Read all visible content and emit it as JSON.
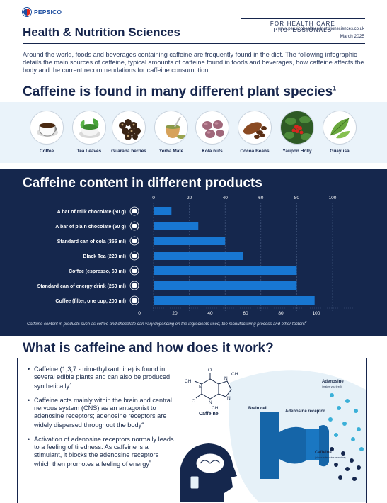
{
  "header": {
    "brand": "PEPSICO",
    "title": "Health & Nutrition Sciences",
    "audience": "FOR HEALTH CARE PROFESSIONALS",
    "website": "www.pepsicohealthandnutritionsciences.co.uk",
    "date": "March 2025"
  },
  "intro": "Around the world, foods and beverages containing caffeine are frequently found in the diet. The following infographic details the main sources of caffeine, typical amounts of caffeine found in foods and beverages, how caffeine affects the body and the current recommendations for caffeine consumption.",
  "section1": {
    "title": "Caffeine is found in many different plant species",
    "ref": "1"
  },
  "plants": [
    {
      "label": "Coffee",
      "icon": "coffee-cup-icon"
    },
    {
      "label": "Tea Leaves",
      "icon": "tea-leaves-icon"
    },
    {
      "label": "Guarana berries",
      "icon": "guarana-berries-icon"
    },
    {
      "label": "Yerba Mate",
      "icon": "yerba-mate-icon"
    },
    {
      "label": "Kola nuts",
      "icon": "kola-nuts-icon"
    },
    {
      "label": "Cocoa Beans",
      "icon": "cocoa-beans-icon"
    },
    {
      "label": "Yaupon Holly",
      "icon": "yaupon-holly-icon"
    },
    {
      "label": "Guayusa",
      "icon": "guayusa-icon"
    }
  ],
  "section2": {
    "title": "Caffeine content in different products"
  },
  "chart_data": {
    "type": "bar",
    "orientation": "horizontal",
    "title": "Caffeine content in different products",
    "categories": [
      "A bar of milk chocolate (50 g)",
      "A bar of plain chocolate (50 g)",
      "Standard can of cola (355 ml)",
      "Black Tea (220 ml)",
      "Coffee (espresso, 60 ml)",
      "Standard can of energy drink (250 ml)",
      "Coffee (filter, one cup, 200 ml)"
    ],
    "values": [
      10,
      25,
      40,
      50,
      80,
      80,
      90
    ],
    "icons": [
      "chocolate-bar-icon",
      "plain-chocolate-icon",
      "cola-can-icon",
      "teapot-icon",
      "espresso-cup-icon",
      "energy-drink-icon",
      "filter-coffee-icon"
    ],
    "top_ticks": [
      "0",
      "20",
      "40",
      "60",
      "80",
      "100"
    ],
    "bottom_ticks": [
      "0",
      "20",
      "40",
      "60",
      "80",
      "100"
    ],
    "xlim": [
      0,
      100
    ],
    "bar_color": "#1877d2",
    "grid": true,
    "note": "Caffeine content in products such as coffee and chocolate can vary depending on the ingredients used, the manufacturing process and other factors",
    "note_ref": "2"
  },
  "section3": {
    "title": "What is caffeine and how does it work?"
  },
  "bullets": [
    {
      "text": "Caffeine (1,3,7 - trimethylxanthine) is found in several edible plants and can also be produced synthetically",
      "ref": "3"
    },
    {
      "text": "Caffeine acts mainly within the brain and central nervous system (CNS) as an antagonist to adenosine receptors; adenosine receptors are widely dispersed throughout the body",
      "ref": "4",
      "mid_ref": "3"
    },
    {
      "text": "Activation of adenosine receptors normally leads to a feeling of tiredness. As caffeine is a stimulant, it blocks the adenosine receptors which then promotes a feeling of energy",
      "ref": "5"
    }
  ],
  "diagram": {
    "molecule_label": "Caffeine",
    "brain_cell": "Brain cell",
    "receptor": "Adenosine receptor",
    "adenosine": "Adenosine",
    "adenosine_sub": "(makes you tired)",
    "caffeine": "Caffeine",
    "caffeine_sub": "(blocks adenosine receptors)",
    "molecule_atoms": [
      "O",
      "N",
      "N",
      "N",
      "N",
      "O",
      "CH",
      "CH",
      "CH"
    ]
  },
  "colors": {
    "navy": "#15274d",
    "accent": "#1877d2",
    "light_bg": "#eaf3fa"
  }
}
